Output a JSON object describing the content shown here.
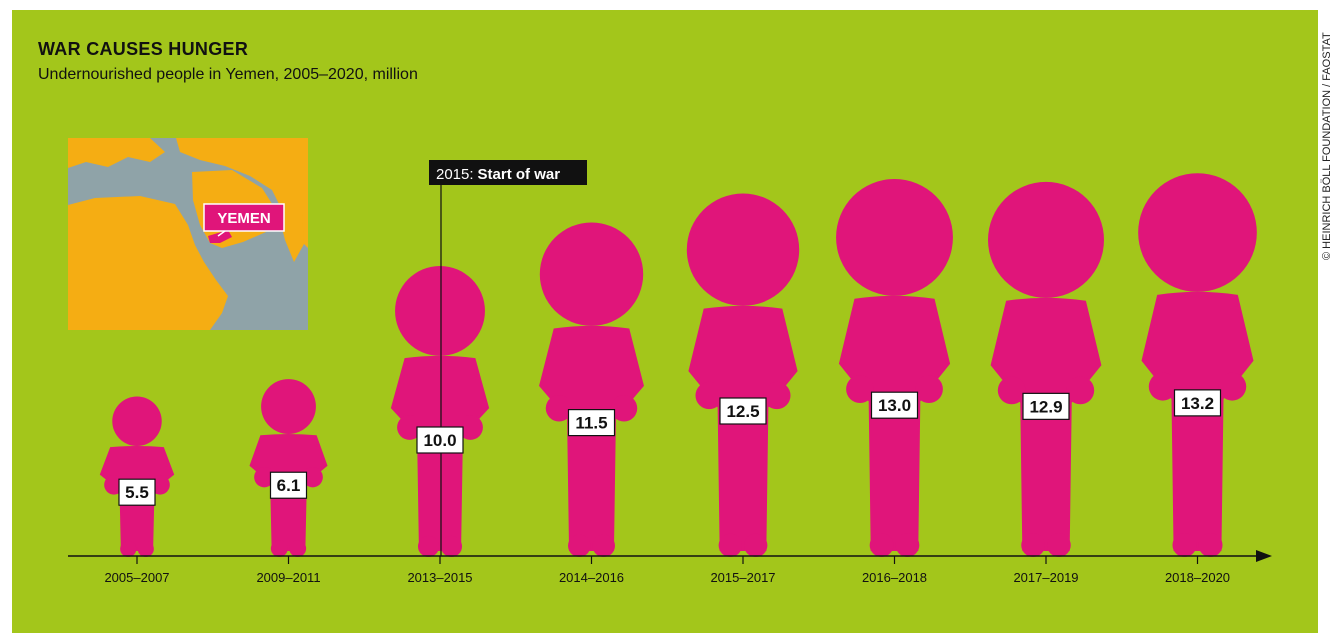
{
  "colors": {
    "background": "#a3c61b",
    "figure": "#e0157a",
    "axis": "#111111",
    "map_land": "#f5ad13",
    "map_sea": "#8fa3a8"
  },
  "header": {
    "title": "WAR CAUSES HUNGER",
    "subtitle": "Undernourished people in Yemen, 2005–2020, million"
  },
  "credit": "© HEINRICH BÖLL FOUNDATION / FAOSTAT",
  "map": {
    "label": "YEMEN"
  },
  "annotation": {
    "year": "2015:",
    "text": "Start of war"
  },
  "chart_data": {
    "type": "bar",
    "categories": [
      "2005–2007",
      "2009–2011",
      "2013–2015",
      "2014–2016",
      "2015–2017",
      "2016–2018",
      "2017–2019",
      "2018–2020"
    ],
    "values": [
      5.5,
      6.1,
      10.0,
      11.5,
      12.5,
      13.0,
      12.9,
      13.2
    ],
    "value_labels": [
      "5.5",
      "6.1",
      "10.0",
      "11.5",
      "12.5",
      "13.0",
      "12.9",
      "13.2"
    ],
    "title": "WAR CAUSES HUNGER",
    "subtitle": "Undernourished people in Yemen, 2005–2020, million",
    "xlabel": "",
    "ylabel": "",
    "ylim": [
      0,
      14
    ],
    "legend": "none",
    "marker": "person-figure"
  }
}
